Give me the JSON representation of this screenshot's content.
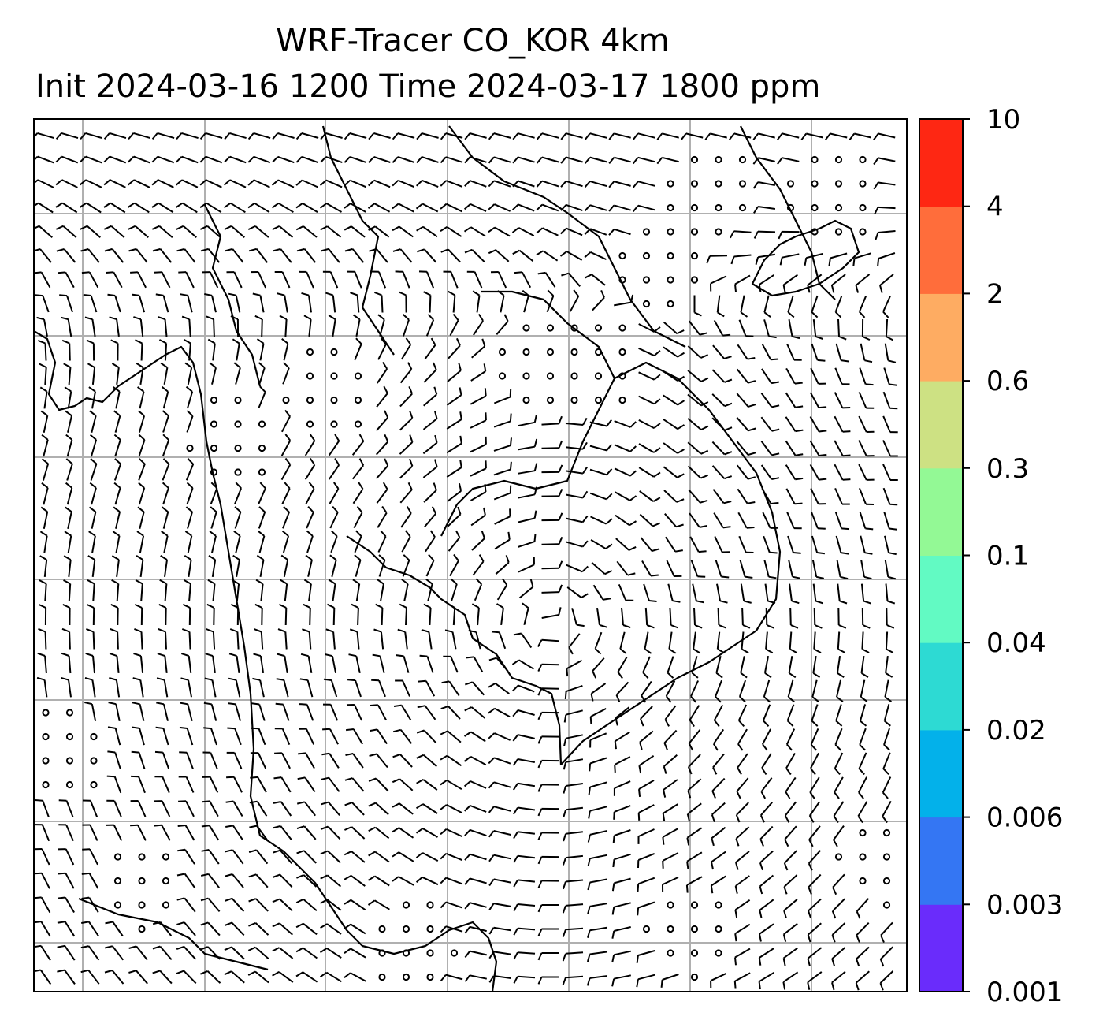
{
  "title_line_1": "WRF-Tracer CO_KOR 4km",
  "title_line_2": "Init 2024-03-16 1200 Time 2024-03-17 1800 ppm",
  "colorbar": {
    "ticks": [
      "0.001",
      "0.003",
      "0.006",
      "0.02",
      "0.04",
      "0.1",
      "0.3",
      "0.6",
      "2",
      "4",
      "10"
    ],
    "colors": [
      "#6a2cfb",
      "#3476f3",
      "#03b1ea",
      "#2ddad3",
      "#62fac3",
      "#93f995",
      "#cde183",
      "#feac62",
      "#ff6d3b",
      "#fe2713"
    ]
  },
  "map": {
    "gridline_color": "#b0b0b0",
    "overlay": "wind barbs",
    "calm_marker": "open circle",
    "coastline_color": "#000000"
  }
}
